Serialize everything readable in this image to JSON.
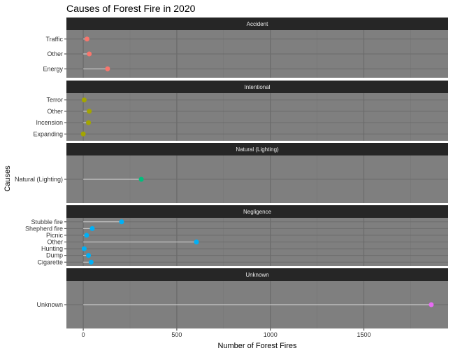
{
  "chart_data": {
    "type": "lollipop",
    "title": "Causes of Forest Fire in 2020",
    "xlabel": "Number of Forest Fires",
    "ylabel": "Causes",
    "xlim": [
      -90,
      1950
    ],
    "x_ticks": [
      0,
      500,
      1000,
      1500
    ],
    "grid": true,
    "legend": "none",
    "panels": [
      {
        "name": "Accident",
        "color": "#F8766D",
        "categories": [
          "Traffic",
          "Other",
          "Energy"
        ],
        "values": [
          20,
          32,
          130
        ]
      },
      {
        "name": "Intentional",
        "color": "#A3A500",
        "categories": [
          "Terror",
          "Other",
          "Incension",
          "Expanding"
        ],
        "values": [
          5,
          32,
          28,
          0
        ]
      },
      {
        "name": "Natural (Lighting)",
        "color": "#00BF7D",
        "categories": [
          "Natural (Lighting)"
        ],
        "values": [
          310
        ]
      },
      {
        "name": "Negligence",
        "color": "#00B0F6",
        "categories": [
          "Stubble fire",
          "Shepherd fire",
          "Picnic",
          "Other",
          "Hunting",
          "Dump",
          "Cigarette"
        ],
        "values": [
          205,
          48,
          18,
          605,
          5,
          28,
          42
        ]
      },
      {
        "name": "Unknown",
        "color": "#E76BF3",
        "categories": [
          "Unknown"
        ],
        "values": [
          1860
        ]
      }
    ]
  }
}
